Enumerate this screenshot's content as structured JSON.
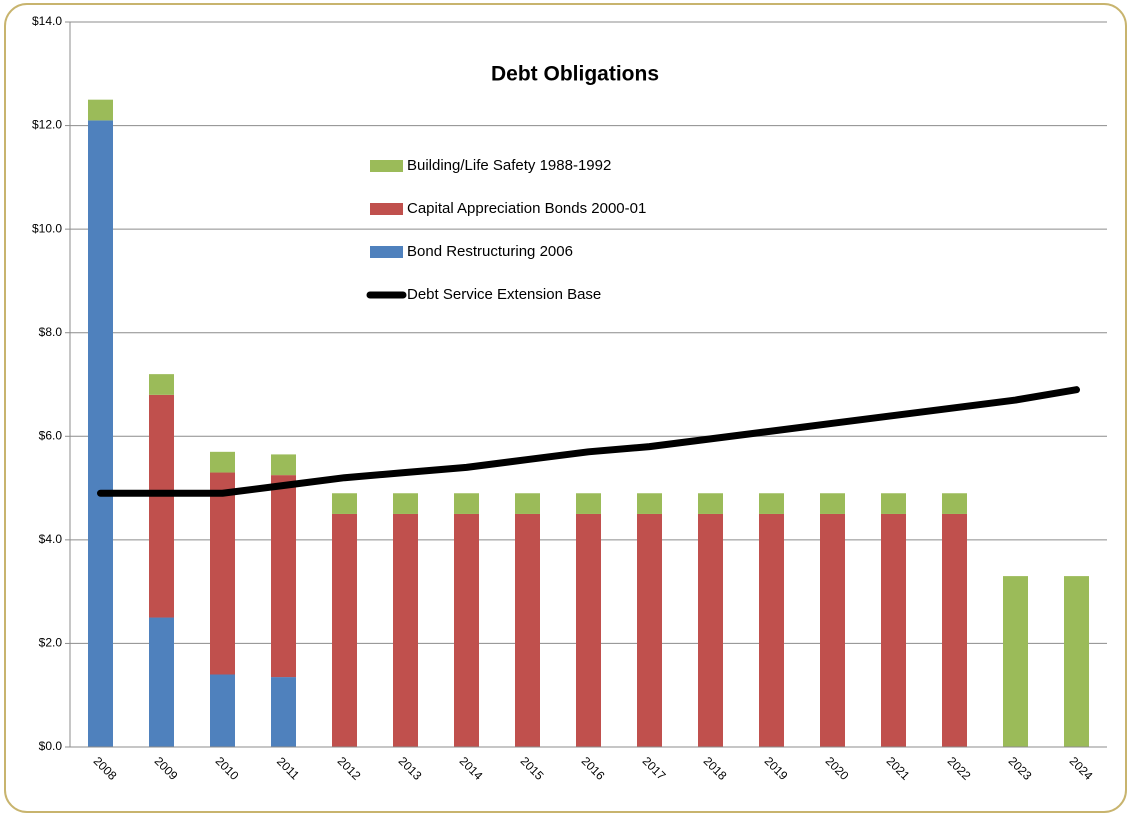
{
  "chart_data": {
    "type": "bar",
    "stacked": true,
    "title": "Debt Obligations",
    "categories": [
      "2008",
      "2009",
      "2010",
      "2011",
      "2012",
      "2013",
      "2014",
      "2015",
      "2016",
      "2017",
      "2018",
      "2019",
      "2020",
      "2021",
      "2022",
      "2023",
      "2024"
    ],
    "series": [
      {
        "name": "Bond Restructuring 2006",
        "type": "bar",
        "color": "#4f81bd",
        "values": [
          12.1,
          2.5,
          1.4,
          1.35,
          0,
          0,
          0,
          0,
          0,
          0,
          0,
          0,
          0,
          0,
          0,
          0,
          0
        ]
      },
      {
        "name": "Capital Appreciation Bonds 2000-01",
        "type": "bar",
        "color": "#c0504d",
        "values": [
          0,
          4.3,
          3.9,
          3.9,
          4.5,
          4.5,
          4.5,
          4.5,
          4.5,
          4.5,
          4.5,
          4.5,
          4.5,
          4.5,
          4.5,
          0,
          0
        ]
      },
      {
        "name": "Building/Life Safety 1988-1992",
        "type": "bar",
        "color": "#9bbb59",
        "values": [
          0.4,
          0.4,
          0.4,
          0.4,
          0.4,
          0.4,
          0.4,
          0.4,
          0.4,
          0.4,
          0.4,
          0.4,
          0.4,
          0.4,
          0.4,
          3.3,
          3.3
        ]
      },
      {
        "name": "Debt Service Extension Base",
        "type": "line",
        "color": "#000000",
        "values": [
          4.9,
          4.9,
          4.9,
          5.05,
          5.2,
          5.3,
          5.4,
          5.55,
          5.7,
          5.8,
          5.95,
          6.1,
          6.25,
          6.4,
          6.55,
          6.7,
          6.9
        ]
      }
    ],
    "ylim": [
      0,
      14
    ],
    "yticks": [
      {
        "value": 0,
        "label": "$0.0"
      },
      {
        "value": 2,
        "label": "$2.0"
      },
      {
        "value": 4,
        "label": "$4.0"
      },
      {
        "value": 6,
        "label": "$6.0"
      },
      {
        "value": 8,
        "label": "$8.0"
      },
      {
        "value": 10,
        "label": "$10.0"
      },
      {
        "value": 12,
        "label": "$12.0"
      },
      {
        "value": 14,
        "label": "$14.0"
      }
    ],
    "grid": true,
    "legend": "inside-top"
  }
}
